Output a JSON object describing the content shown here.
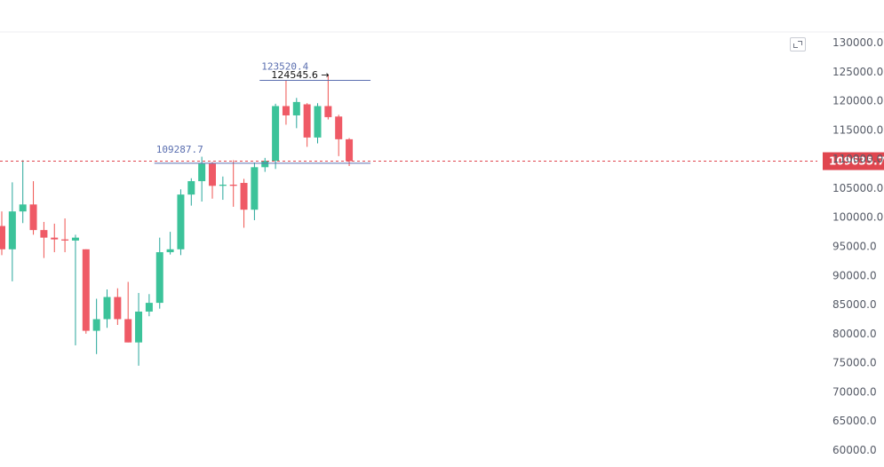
{
  "colors": {
    "up": "#26a69a",
    "up_fill": "#3cc39a",
    "down": "#ef5350",
    "down_fill": "#ef5a66",
    "current_price": "#e0464f",
    "annotation_line": "#5b6fb0",
    "grid": "#f2f3f5"
  },
  "icons": {
    "toolbar": "fullscreen-toggle-icon"
  },
  "chart_data": {
    "type": "candlestick",
    "ylim": [
      58000,
      132000
    ],
    "y_ticks": [
      "130000.0",
      "125000.0",
      "120000.0",
      "115000.0",
      "110000.0",
      "105000.0",
      "100000.0",
      "95000.0",
      "90000.0",
      "85000.0",
      "80000.0",
      "75000.0",
      "70000.0",
      "65000.0",
      "60000.0"
    ],
    "current_price": 109635.7,
    "current_price_label": "109635.7",
    "candles": [
      {
        "o": 98500,
        "h": 101000,
        "l": 93500,
        "c": 94500
      },
      {
        "o": 94500,
        "h": 106000,
        "l": 89000,
        "c": 101000
      },
      {
        "o": 101000,
        "h": 109800,
        "l": 99000,
        "c": 102200
      },
      {
        "o": 102200,
        "h": 106200,
        "l": 97000,
        "c": 97800
      },
      {
        "o": 97800,
        "h": 99200,
        "l": 93000,
        "c": 96500
      },
      {
        "o": 96500,
        "h": 98900,
        "l": 94000,
        "c": 96200
      },
      {
        "o": 96200,
        "h": 99800,
        "l": 94000,
        "c": 96000
      },
      {
        "o": 96000,
        "h": 97000,
        "l": 78000,
        "c": 96500
      },
      {
        "o": 94500,
        "h": 94500,
        "l": 80000,
        "c": 80500
      },
      {
        "o": 80500,
        "h": 86000,
        "l": 76500,
        "c": 82500
      },
      {
        "o": 82500,
        "h": 87600,
        "l": 81000,
        "c": 86300
      },
      {
        "o": 86300,
        "h": 87800,
        "l": 81500,
        "c": 82500
      },
      {
        "o": 82500,
        "h": 88900,
        "l": 78500,
        "c": 78500
      },
      {
        "o": 78500,
        "h": 87000,
        "l": 74500,
        "c": 83800
      },
      {
        "o": 83800,
        "h": 86800,
        "l": 83000,
        "c": 85300
      },
      {
        "o": 85300,
        "h": 96500,
        "l": 84300,
        "c": 94000
      },
      {
        "o": 94000,
        "h": 97500,
        "l": 93600,
        "c": 94500
      },
      {
        "o": 94500,
        "h": 104800,
        "l": 93500,
        "c": 103900
      },
      {
        "o": 103900,
        "h": 106700,
        "l": 102000,
        "c": 106200
      },
      {
        "o": 106200,
        "h": 110400,
        "l": 102700,
        "c": 109200
      },
      {
        "o": 109200,
        "h": 109500,
        "l": 103200,
        "c": 105400
      },
      {
        "o": 105400,
        "h": 107000,
        "l": 103000,
        "c": 105600
      },
      {
        "o": 105600,
        "h": 109800,
        "l": 101800,
        "c": 105400
      },
      {
        "o": 105900,
        "h": 106600,
        "l": 98200,
        "c": 101300
      },
      {
        "o": 101300,
        "h": 109400,
        "l": 99500,
        "c": 108600
      },
      {
        "o": 108600,
        "h": 110200,
        "l": 107800,
        "c": 109700
      },
      {
        "o": 109700,
        "h": 119500,
        "l": 108300,
        "c": 119100
      },
      {
        "o": 119100,
        "h": 123520.4,
        "l": 115900,
        "c": 117500
      },
      {
        "o": 117500,
        "h": 120500,
        "l": 115300,
        "c": 119800
      },
      {
        "o": 119400,
        "h": 119600,
        "l": 112100,
        "c": 113700
      },
      {
        "o": 113700,
        "h": 119600,
        "l": 112700,
        "c": 119100
      },
      {
        "o": 119100,
        "h": 124545.6,
        "l": 116800,
        "c": 117200
      },
      {
        "o": 117300,
        "h": 117600,
        "l": 110500,
        "c": 113400
      },
      {
        "o": 113400,
        "h": 113600,
        "l": 108800,
        "c": 109635.7
      }
    ],
    "annotations": [
      {
        "label": "123520.4",
        "value": 123520.4,
        "from_index": 25,
        "to_index": 33
      },
      {
        "label": "124545.6 →",
        "value": 124545.6,
        "from_index": 31,
        "to_index": 31
      },
      {
        "label": "109287.7",
        "value": 109287.7,
        "from_index": 15,
        "to_index": 33
      }
    ]
  }
}
